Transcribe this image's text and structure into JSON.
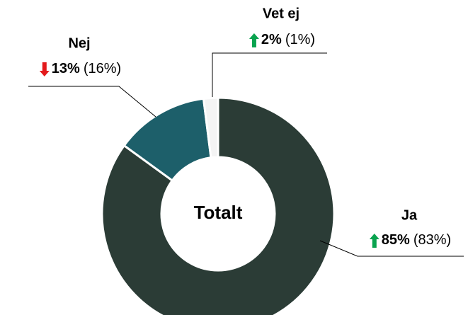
{
  "chart_data": {
    "type": "donut",
    "center_label": "Totalt",
    "categories": [
      "Ja",
      "Nej",
      "Vet ej"
    ],
    "values": [
      85,
      13,
      2
    ],
    "value_labels": [
      "85%",
      "13%",
      "2%"
    ],
    "previous": [
      83,
      16,
      1
    ],
    "previous_labels": [
      "(83%)",
      "(16%)",
      "(1%)"
    ],
    "colors": [
      "#2b3c36",
      "#1d5f6a",
      "#f4f4f4"
    ]
  }
}
